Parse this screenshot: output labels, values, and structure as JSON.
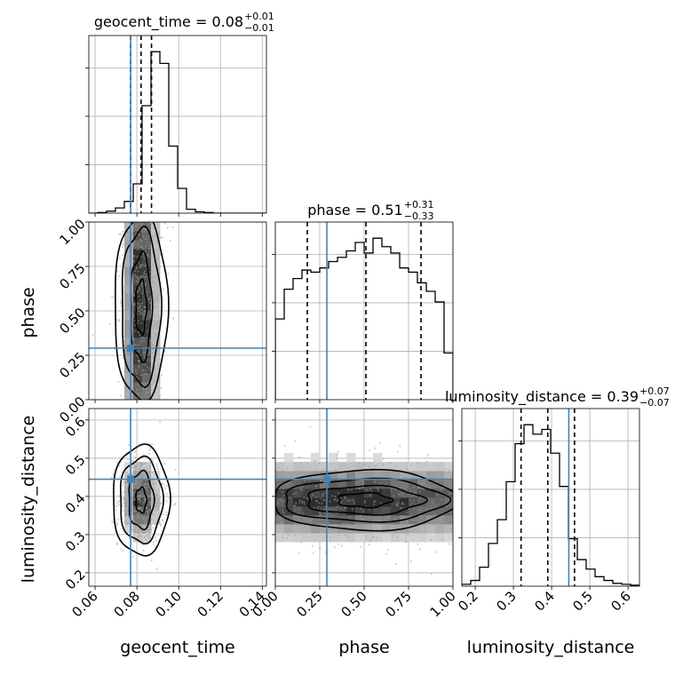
{
  "chart_data": {
    "type": "corner",
    "parameters": [
      "geocent_time",
      "phase",
      "luminosity_distance"
    ],
    "ranges": [
      [
        0.057,
        0.142
      ],
      [
        0.0,
        1.0
      ],
      [
        0.165,
        0.63
      ]
    ],
    "ticks": {
      "geocent_time": [
        "0.06",
        "0.08",
        "0.10",
        "0.12",
        "0.14"
      ],
      "phase": [
        "0.00",
        "0.25",
        "0.50",
        "0.75",
        "1.00"
      ],
      "luminosity_distance": [
        "0.2",
        "0.3",
        "0.4",
        "0.5",
        "0.6"
      ]
    },
    "tick_values": {
      "geocent_time": [
        0.06,
        0.08,
        0.1,
        0.12,
        0.14
      ],
      "phase": [
        0.0,
        0.25,
        0.5,
        0.75,
        1.0
      ],
      "luminosity_distance": [
        0.2,
        0.3,
        0.4,
        0.5,
        0.6
      ]
    },
    "titles": [
      {
        "param": "geocent_time",
        "text": "geocent_time = 0.08",
        "plus": "+0.01",
        "minus": "−0.01"
      },
      {
        "param": "phase",
        "text": "phase = 0.51",
        "plus": "+0.31",
        "minus": "−0.33"
      },
      {
        "param": "luminosity_distance",
        "text": "luminosity_distance = 0.39",
        "plus": "+0.07",
        "minus": "−0.07"
      }
    ],
    "quantiles": {
      "geocent_time": [
        0.077,
        0.082,
        0.087
      ],
      "phase": [
        0.18,
        0.51,
        0.82
      ],
      "luminosity_distance": [
        0.32,
        0.39,
        0.46
      ]
    },
    "truths": {
      "geocent_time": 0.077,
      "phase": 0.29,
      "luminosity_distance": 0.445
    },
    "truth_color": "#4682b4",
    "hist_color": "#000000",
    "histograms": {
      "geocent_time": {
        "edges_start": 0.057,
        "bin_width": 0.00425,
        "counts": [
          0,
          1,
          3,
          8,
          18,
          45,
          165,
          248,
          230,
          103,
          38,
          6,
          2,
          1,
          0,
          0,
          0,
          0,
          0,
          0
        ]
      },
      "phase": {
        "edges_start": 0.0,
        "bin_width": 0.05,
        "counts": [
          190,
          260,
          285,
          305,
          300,
          310,
          325,
          335,
          350,
          370,
          345,
          380,
          360,
          345,
          310,
          300,
          275,
          255,
          230,
          110
        ]
      },
      "luminosity_distance": {
        "edges_start": 0.165,
        "bin_width": 0.02325,
        "counts": [
          2,
          6,
          20,
          45,
          70,
          110,
          150,
          170,
          160,
          165,
          140,
          105,
          50,
          28,
          18,
          10,
          6,
          3,
          2,
          1
        ]
      }
    },
    "contour_levels": [
      0.39,
      0.86,
      1.0
    ]
  }
}
